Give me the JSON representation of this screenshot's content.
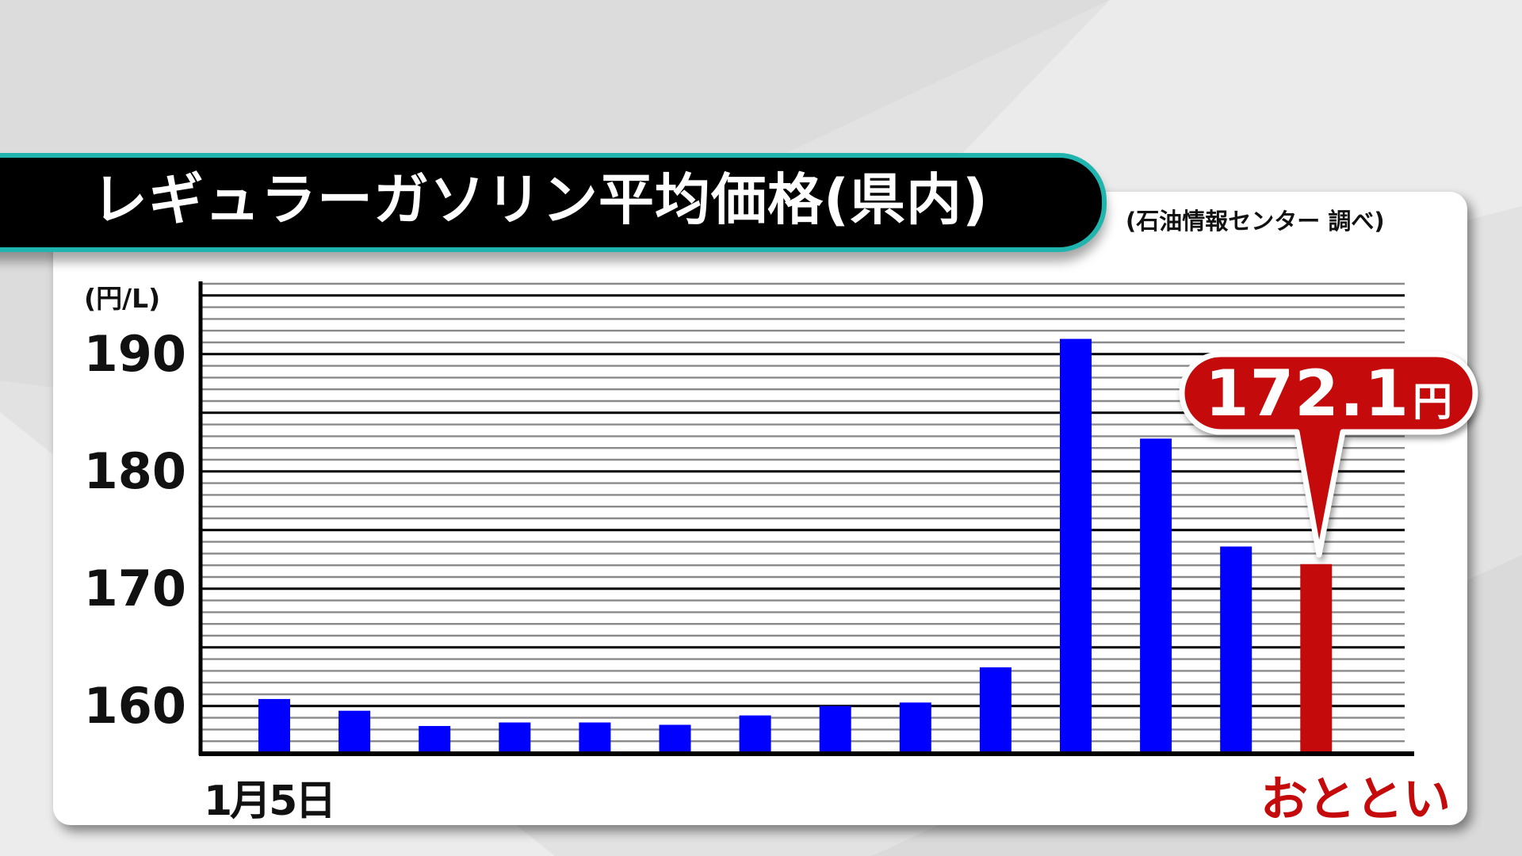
{
  "title": "レギュラーガソリン平均価格(県内)",
  "source": "(石油情報センター 調べ)",
  "colors": {
    "bar": "#0000ff",
    "highlight": "#c40a0a",
    "title_bg": "#000000",
    "title_border": "#1fb5ae"
  },
  "chart_data": {
    "type": "bar",
    "title": "レギュラーガソリン平均価格(県内)",
    "ylabel": "(円/L)",
    "ylim": [
      156,
      196
    ],
    "yticks": [
      160,
      170,
      180,
      190
    ],
    "grid": true,
    "x_first_label": "1月5日",
    "x_last_label": "おととい",
    "values": [
      160.6,
      159.6,
      158.3,
      158.6,
      158.6,
      158.4,
      159.2,
      160.0,
      160.3,
      163.3,
      191.3,
      182.8,
      173.6,
      172.1
    ],
    "highlight_index": 13,
    "callout": {
      "value": "172.1",
      "unit": "円"
    }
  }
}
